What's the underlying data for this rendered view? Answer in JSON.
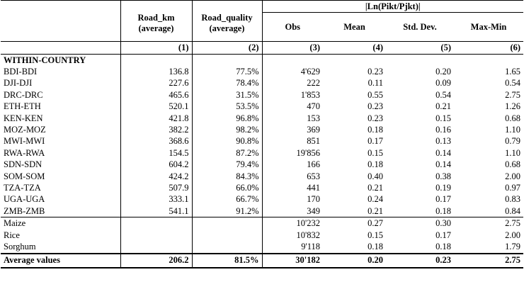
{
  "header": {
    "span_label": "|Ln(Pikt/Pjkt)|",
    "col_road_km": [
      "Road_km",
      "(average)"
    ],
    "col_road_quality": [
      "Road_quality",
      "(average)"
    ],
    "col_obs": "Obs",
    "col_mean": "Mean",
    "col_sd": "Std. Dev.",
    "col_maxmin": "Max-Min",
    "col_numbers": [
      "(1)",
      "(2)",
      "(3)",
      "(4)",
      "(5)",
      "(6)"
    ]
  },
  "section_label": "WITHIN-COUNTRY",
  "countries": [
    {
      "label": "BDI-BDI",
      "road_km": "136.8",
      "road_quality": "77.5%",
      "obs": "4'629",
      "mean": "0.23",
      "sd": "0.20",
      "maxmin": "1.65"
    },
    {
      "label": "DJI-DJI",
      "road_km": "227.6",
      "road_quality": "78.4%",
      "obs": "222",
      "mean": "0.11",
      "sd": "0.09",
      "maxmin": "0.54"
    },
    {
      "label": "DRC-DRC",
      "road_km": "465.6",
      "road_quality": "31.5%",
      "obs": "1'853",
      "mean": "0.55",
      "sd": "0.54",
      "maxmin": "2.75"
    },
    {
      "label": "ETH-ETH",
      "road_km": "520.1",
      "road_quality": "53.5%",
      "obs": "470",
      "mean": "0.23",
      "sd": "0.21",
      "maxmin": "1.26"
    },
    {
      "label": "KEN-KEN",
      "road_km": "421.8",
      "road_quality": "96.8%",
      "obs": "153",
      "mean": "0.23",
      "sd": "0.15",
      "maxmin": "0.68"
    },
    {
      "label": "MOZ-MOZ",
      "road_km": "382.2",
      "road_quality": "98.2%",
      "obs": "369",
      "mean": "0.18",
      "sd": "0.16",
      "maxmin": "1.10"
    },
    {
      "label": "MWI-MWI",
      "road_km": "368.6",
      "road_quality": "90.8%",
      "obs": "851",
      "mean": "0.17",
      "sd": "0.13",
      "maxmin": "0.79"
    },
    {
      "label": "RWA-RWA",
      "road_km": "154.5",
      "road_quality": "87.2%",
      "obs": "19'856",
      "mean": "0.15",
      "sd": "0.14",
      "maxmin": "1.10"
    },
    {
      "label": "SDN-SDN",
      "road_km": "604.2",
      "road_quality": "79.4%",
      "obs": "166",
      "mean": "0.18",
      "sd": "0.14",
      "maxmin": "0.68"
    },
    {
      "label": "SOM-SOM",
      "road_km": "424.2",
      "road_quality": "84.3%",
      "obs": "653",
      "mean": "0.40",
      "sd": "0.38",
      "maxmin": "2.00"
    },
    {
      "label": "TZA-TZA",
      "road_km": "507.9",
      "road_quality": "66.0%",
      "obs": "441",
      "mean": "0.21",
      "sd": "0.19",
      "maxmin": "0.97"
    },
    {
      "label": "UGA-UGA",
      "road_km": "333.1",
      "road_quality": "66.7%",
      "obs": "170",
      "mean": "0.24",
      "sd": "0.17",
      "maxmin": "0.83"
    },
    {
      "label": "ZMB-ZMB",
      "road_km": "541.1",
      "road_quality": "91.2%",
      "obs": "349",
      "mean": "0.21",
      "sd": "0.18",
      "maxmin": "0.84"
    }
  ],
  "commodities": [
    {
      "label": "Maize",
      "road_km": "",
      "road_quality": "",
      "obs": "10'232",
      "mean": "0.27",
      "sd": "0.30",
      "maxmin": "2.75"
    },
    {
      "label": "Rice",
      "road_km": "",
      "road_quality": "",
      "obs": "10'832",
      "mean": "0.15",
      "sd": "0.17",
      "maxmin": "2.00"
    },
    {
      "label": "Sorghum",
      "road_km": "",
      "road_quality": "",
      "obs": "9'118",
      "mean": "0.18",
      "sd": "0.18",
      "maxmin": "1.79"
    }
  ],
  "average": {
    "label": "Average values",
    "road_km": "206.2",
    "road_quality": "81.5%",
    "obs": "30'182",
    "mean": "0.20",
    "sd": "0.23",
    "maxmin": "2.75"
  }
}
